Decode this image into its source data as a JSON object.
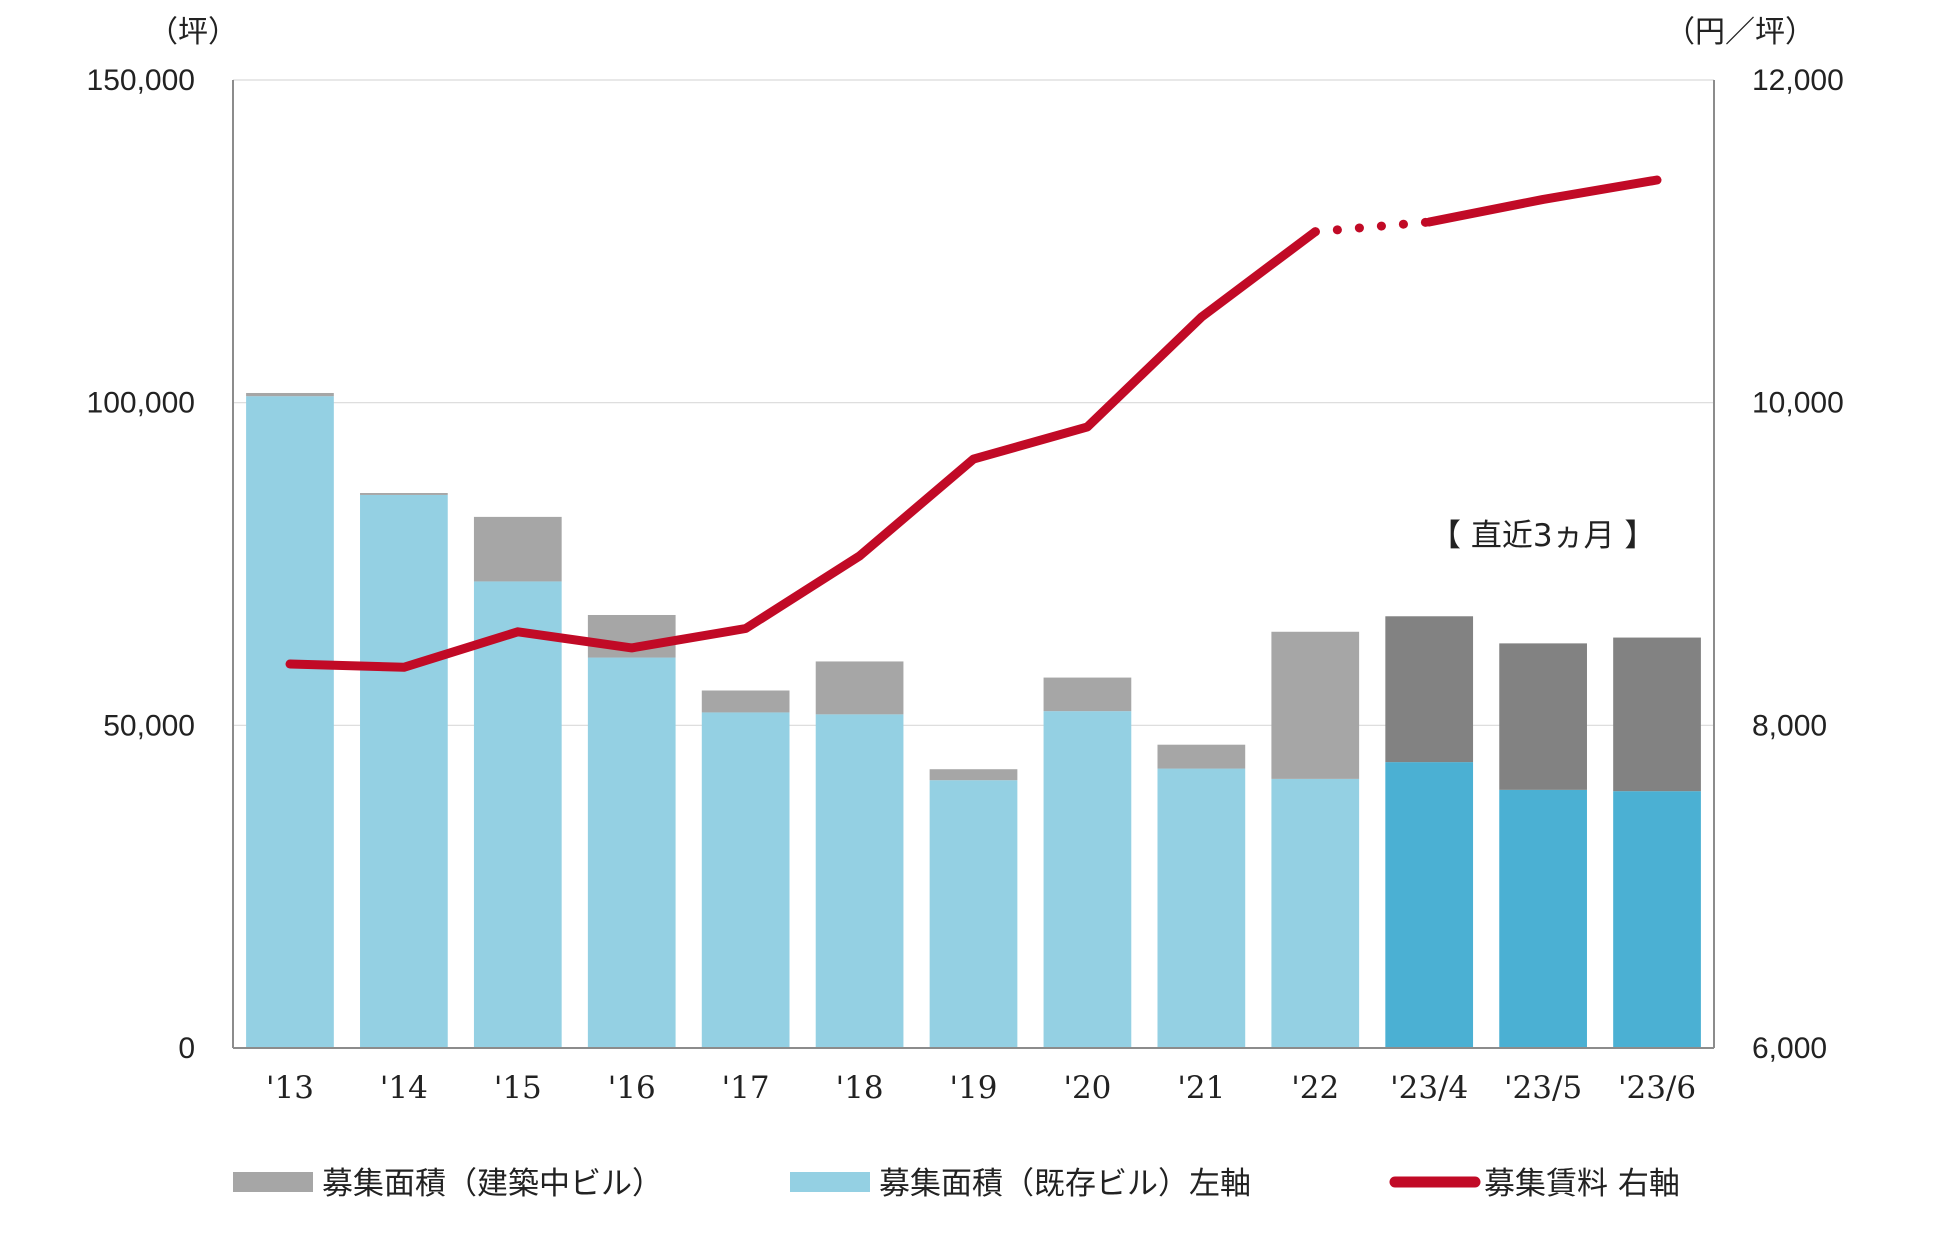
{
  "chart_data": {
    "type": "bar",
    "categories": [
      "'13",
      "'14",
      "'15",
      "'16",
      "'17",
      "'18",
      "'19",
      "'20",
      "'21",
      "'22",
      "'23/4",
      "'23/5",
      "'23/6"
    ],
    "series": [
      {
        "name": "募集面積（既存ビル）左軸",
        "type": "bar",
        "stack": "area",
        "axis": "left",
        "values": [
          101000,
          85700,
          72300,
          60500,
          52000,
          51700,
          41500,
          52200,
          43300,
          41700,
          44300,
          40000,
          39800
        ]
      },
      {
        "name": "募集面積（建築中ビル）",
        "type": "bar",
        "stack": "area",
        "axis": "left",
        "values": [
          500,
          300,
          10000,
          6600,
          3400,
          8200,
          1700,
          5200,
          3700,
          22800,
          22600,
          22700,
          23800
        ]
      },
      {
        "name": "募集賃料 右軸",
        "type": "line",
        "axis": "right",
        "values": [
          8380,
          8360,
          8580,
          8480,
          8600,
          9050,
          9650,
          9850,
          10530,
          11060,
          11120,
          11260,
          11380
        ]
      }
    ],
    "recent_count": 3,
    "colors": {
      "existing": "#94d0e3",
      "existing_recent": "#4bb0d3",
      "construction": "#a6a6a6",
      "construction_recent": "#828282",
      "rent_line": "#c10a26",
      "axis": "#8c8c8c",
      "grid": "#d9d9d9"
    },
    "left_axis": {
      "unit": "（坪）",
      "ylim": [
        0,
        150000
      ],
      "ticks": [
        "0",
        "50,000",
        "100,000",
        "150,000"
      ]
    },
    "right_axis": {
      "unit": "（円／坪）",
      "ylim": [
        6000,
        12000
      ],
      "ticks": [
        "6,000",
        "8,000",
        "10,000",
        "12,000"
      ]
    },
    "annotation": "【 直近3ヵ月 】",
    "legend": {
      "position": "bottom",
      "items": [
        "募集面積（建築中ビル）",
        "募集面積（既存ビル）左軸",
        "募集賃料 右軸"
      ]
    },
    "grid": true
  }
}
